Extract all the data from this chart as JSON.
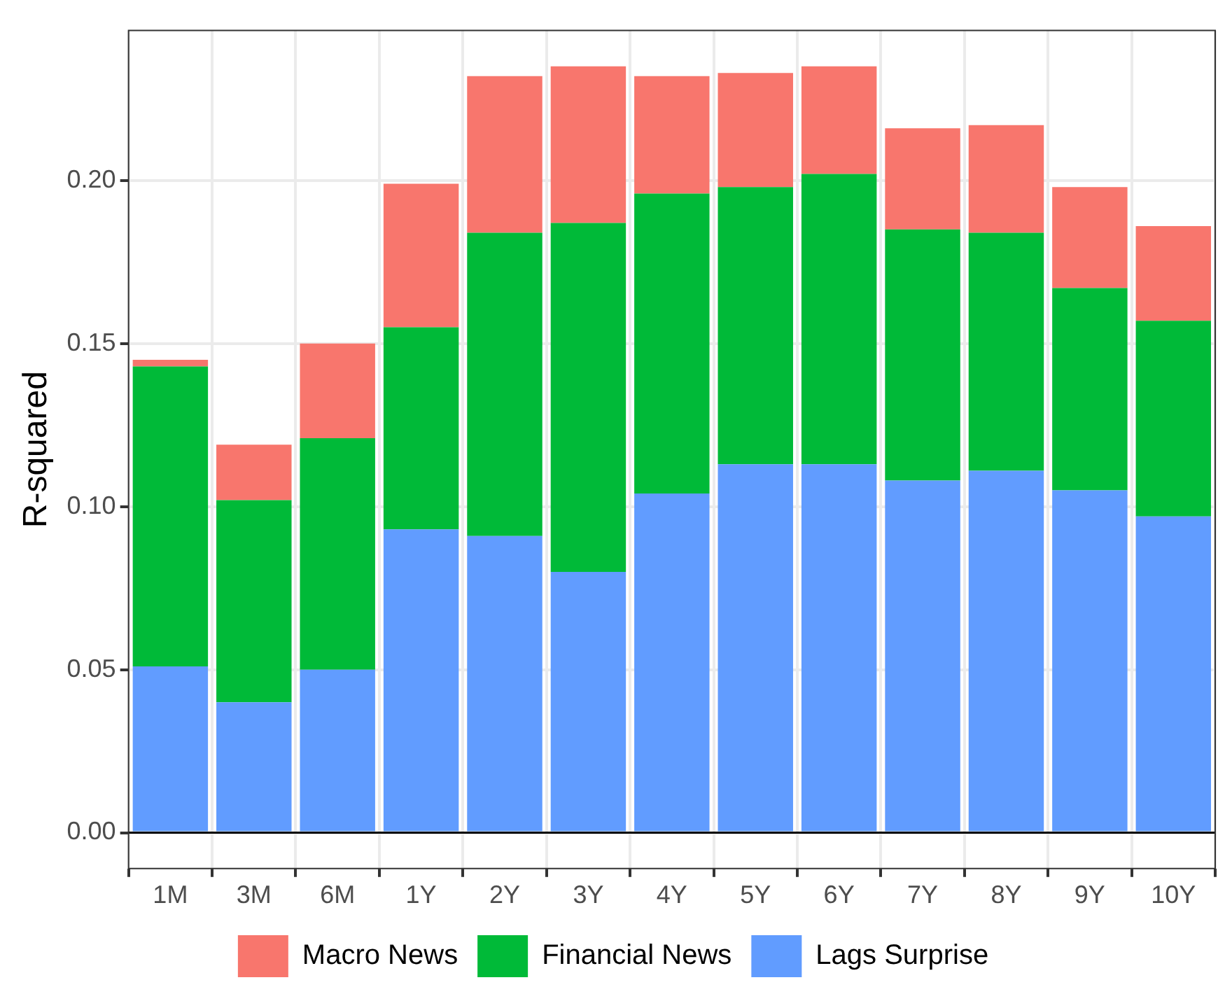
{
  "chart_data": {
    "type": "bar",
    "stacked": true,
    "ylabel": "R-squared",
    "categories": [
      "1M",
      "3M",
      "6M",
      "1Y",
      "2Y",
      "3Y",
      "4Y",
      "5Y",
      "6Y",
      "7Y",
      "8Y",
      "9Y",
      "10Y"
    ],
    "series": [
      {
        "name": "Lags Surprise",
        "color": "#619cff",
        "values": [
          0.051,
          0.04,
          0.05,
          0.093,
          0.091,
          0.08,
          0.104,
          0.113,
          0.113,
          0.108,
          0.111,
          0.105,
          0.097
        ]
      },
      {
        "name": "Financial News",
        "color": "#00ba38",
        "values": [
          0.092,
          0.062,
          0.071,
          0.062,
          0.093,
          0.107,
          0.092,
          0.085,
          0.089,
          0.077,
          0.073,
          0.062,
          0.06
        ]
      },
      {
        "name": "Macro News",
        "color": "#f8766d",
        "values": [
          0.002,
          0.017,
          0.029,
          0.044,
          0.048,
          0.048,
          0.036,
          0.035,
          0.033,
          0.031,
          0.033,
          0.031,
          0.029
        ]
      }
    ],
    "ylim": [
      -0.011,
      0.246
    ],
    "yticks": [
      {
        "value": 0,
        "label": "0.00"
      },
      {
        "value": 0.05,
        "label": "0.05"
      },
      {
        "value": 0.1,
        "label": "0.10"
      },
      {
        "value": 0.15,
        "label": "0.15"
      },
      {
        "value": 0.2,
        "label": "0.20"
      }
    ],
    "ref_lines": [
      {
        "axis": "y",
        "value": 0,
        "color": "#000000"
      }
    ],
    "grid": true,
    "legend": "bottom"
  }
}
